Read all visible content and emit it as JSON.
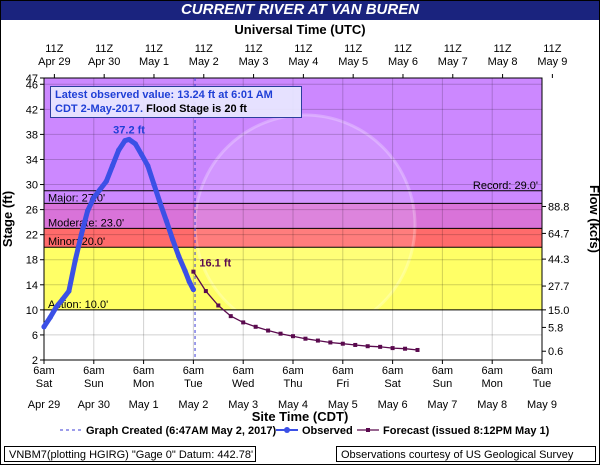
{
  "title": "CURRENT RIVER AT VAN BUREN",
  "top_axis_title": "Universal Time (UTC)",
  "bottom_axis_title": "Site Time (CDT)",
  "y_axis_left_label": "Stage (ft)",
  "y_axis_right_label": "Flow (kcfs)",
  "latest_box": {
    "line1": "Latest observed value: 13.24 ft at 6:01 AM",
    "line2a": "CDT 2-May-2017.",
    "line2b": " Flood Stage is 20 ft"
  },
  "legend": {
    "created": "Graph Created (6:47AM May 2, 2017)",
    "observed": "Observed",
    "forecast": "Forecast (issued 8:12PM May 1)"
  },
  "footer": {
    "left": "VNBM7(plotting HGIRG) \"Gage 0\" Datum:  442.78'",
    "right": "Observations courtesy of US Geological Survey"
  },
  "colors": {
    "header_bg": "#1a237e",
    "record_zone": "#cc88ff",
    "major_zone": "#d973d9",
    "moderate_zone": "#ff6b6b",
    "minor_zone": "#ffa64d",
    "action_zone": "#ffff66",
    "normal_zone": "#ffffff",
    "observed": "#3b50e6",
    "forecast": "#5a0a4e",
    "graph_created_line": "#3b3bd6"
  },
  "chart_data": {
    "type": "line",
    "x_unit": "hours",
    "xlim_site": [
      "2017-04-29 06:00",
      "2017-05-09 06:00"
    ],
    "ylim": [
      2,
      47
    ],
    "y_ticks": [
      2,
      6,
      10,
      14,
      18,
      22,
      26,
      30,
      34,
      38,
      42,
      46,
      47
    ],
    "top_ticks": {
      "hour": "11Z",
      "dates": [
        "Apr 29",
        "Apr 30",
        "May 1",
        "May 2",
        "May 3",
        "May 4",
        "May 5",
        "May 6",
        "May 7",
        "May 8",
        "May 9"
      ]
    },
    "bottom_ticks": {
      "hour": "6am",
      "days": [
        "Sat",
        "Sun",
        "Mon",
        "Tue",
        "Wed",
        "Thu",
        "Fri",
        "Sat",
        "Sun",
        "Mon",
        "Tue"
      ],
      "dates": [
        "Apr 29",
        "Apr 30",
        "May 1",
        "May 2",
        "May 3",
        "May 4",
        "May 5",
        "May 6",
        "May 7",
        "May 8",
        "May 9"
      ]
    },
    "flow_ticks": [
      {
        "stage": 3.4,
        "label": "0.6"
      },
      {
        "stage": 7.2,
        "label": "5.8"
      },
      {
        "stage": 10.0,
        "label": "15.0"
      },
      {
        "stage": 13.8,
        "label": "27.7"
      },
      {
        "stage": 18.1,
        "label": "44.3"
      },
      {
        "stage": 22.2,
        "label": "64.7"
      },
      {
        "stage": 26.5,
        "label": "88.8"
      }
    ],
    "thresholds": [
      {
        "name": "Record",
        "value": 29.0,
        "label": "Record: 29.0'"
      },
      {
        "name": "Major",
        "value": 27.0,
        "label": "Major: 27.0'"
      },
      {
        "name": "Moderate",
        "value": 23.0,
        "label": "Moderate: 23.0'"
      },
      {
        "name": "Minor",
        "value": 20.0,
        "label": "Minor: 20.0'"
      },
      {
        "name": "Action",
        "value": 10.0,
        "label": "Action: 10.0'"
      }
    ],
    "graph_created_time": "2017-05-02 06:47",
    "series": [
      {
        "name": "Observed",
        "points": [
          [
            "2017-04-29 06:00",
            7.3
          ],
          [
            "2017-04-29 09:00",
            8.8
          ],
          [
            "2017-04-29 12:00",
            10.5
          ],
          [
            "2017-04-29 15:00",
            11.7
          ],
          [
            "2017-04-29 18:00",
            13.0
          ],
          [
            "2017-04-29 21:00",
            17.8
          ],
          [
            "2017-04-30 00:00",
            22.0
          ],
          [
            "2017-04-30 03:00",
            25.8
          ],
          [
            "2017-04-30 06:00",
            27.9
          ],
          [
            "2017-04-30 09:00",
            29.2
          ],
          [
            "2017-04-30 12:00",
            30.5
          ],
          [
            "2017-04-30 15:00",
            33.0
          ],
          [
            "2017-04-30 18:00",
            35.5
          ],
          [
            "2017-04-30 21:00",
            37.0
          ],
          [
            "2017-04-30 23:00",
            37.2
          ],
          [
            "2017-05-01 02:00",
            36.5
          ],
          [
            "2017-05-01 05:00",
            34.8
          ],
          [
            "2017-05-01 08:00",
            33.0
          ],
          [
            "2017-05-01 11:00",
            30.0
          ],
          [
            "2017-05-01 14:00",
            27.0
          ],
          [
            "2017-05-01 17:00",
            24.2
          ],
          [
            "2017-05-01 20:00",
            21.2
          ],
          [
            "2017-05-01 23:00",
            18.5
          ],
          [
            "2017-05-02 02:00",
            16.2
          ],
          [
            "2017-05-02 04:00",
            14.5
          ],
          [
            "2017-05-02 06:01",
            13.24
          ]
        ],
        "annotation": {
          "time": "2017-04-30 23:00",
          "value": 37.2,
          "label": "37.2 ft"
        }
      },
      {
        "name": "Forecast",
        "points": [
          [
            "2017-05-02 06:00",
            16.1
          ],
          [
            "2017-05-02 12:00",
            13.0
          ],
          [
            "2017-05-02 18:00",
            10.7
          ],
          [
            "2017-05-03 00:00",
            9.0
          ],
          [
            "2017-05-03 06:00",
            8.0
          ],
          [
            "2017-05-03 12:00",
            7.3
          ],
          [
            "2017-05-03 18:00",
            6.7
          ],
          [
            "2017-05-04 00:00",
            6.2
          ],
          [
            "2017-05-04 06:00",
            5.8
          ],
          [
            "2017-05-04 12:00",
            5.4
          ],
          [
            "2017-05-04 18:00",
            5.1
          ],
          [
            "2017-05-05 00:00",
            4.8
          ],
          [
            "2017-05-05 06:00",
            4.6
          ],
          [
            "2017-05-05 12:00",
            4.4
          ],
          [
            "2017-05-05 18:00",
            4.2
          ],
          [
            "2017-05-06 00:00",
            4.1
          ],
          [
            "2017-05-06 06:00",
            3.9
          ],
          [
            "2017-05-06 12:00",
            3.8
          ],
          [
            "2017-05-06 18:00",
            3.6
          ]
        ],
        "annotation": {
          "time": "2017-05-02 06:00",
          "value": 16.1,
          "label": "16.1 ft"
        }
      }
    ]
  }
}
